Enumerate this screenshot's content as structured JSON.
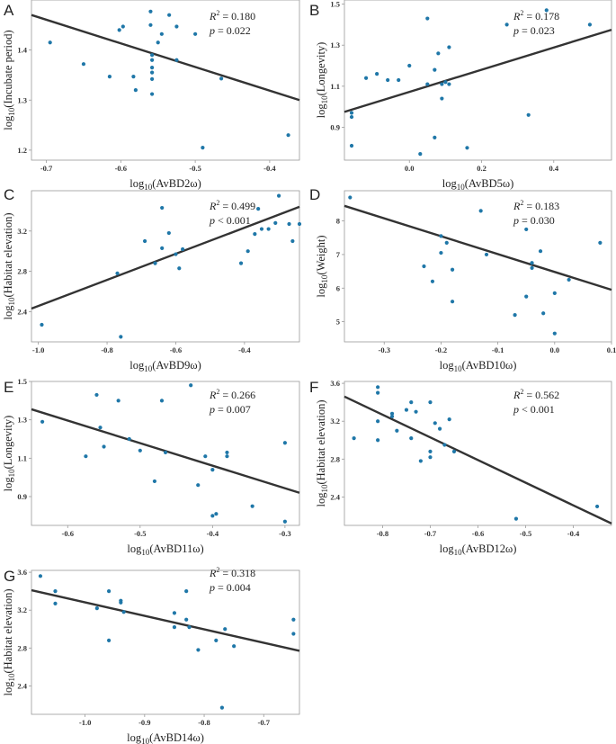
{
  "chart_data": [
    {
      "id": "A",
      "type": "scatter",
      "letter": "A",
      "xlabel_prefix": "log",
      "xlabel_sub": "10",
      "xlabel_rest": "(AvBD2ω)",
      "ylabel_prefix": "log",
      "ylabel_sub": "10",
      "ylabel_rest": "(Incubate  period)",
      "xlim": [
        -0.72,
        -0.36
      ],
      "ylim": [
        1.18,
        1.5
      ],
      "xticks": [
        -0.7,
        -0.6,
        -0.5,
        -0.4
      ],
      "xtick_labels": [
        "-0.7",
        "-0.6",
        "-0.5",
        "-0.4"
      ],
      "yticks": [
        1.2,
        1.3,
        1.4
      ],
      "ytick_labels": [
        "1.2",
        "1.3",
        "1.4"
      ],
      "r2": "0.180",
      "p": "0.022",
      "stat_r2_label": "R",
      "stat_r2_sup": "2",
      "stat_r2_eq": " = ",
      "stat_p_label": "p",
      "stat_p_eq": " = ",
      "fit": [
        [
          -0.72,
          1.47
        ],
        [
          -0.36,
          1.3
        ]
      ],
      "points": [
        [
          -0.695,
          1.415
        ],
        [
          -0.65,
          1.372
        ],
        [
          -0.615,
          1.347
        ],
        [
          -0.602,
          1.44
        ],
        [
          -0.597,
          1.447
        ],
        [
          -0.583,
          1.347
        ],
        [
          -0.58,
          1.32
        ],
        [
          -0.56,
          1.477
        ],
        [
          -0.56,
          1.45
        ],
        [
          -0.558,
          1.39
        ],
        [
          -0.558,
          1.38
        ],
        [
          -0.558,
          1.365
        ],
        [
          -0.558,
          1.355
        ],
        [
          -0.558,
          1.342
        ],
        [
          -0.558,
          1.312
        ],
        [
          -0.55,
          1.415
        ],
        [
          -0.545,
          1.432
        ],
        [
          -0.535,
          1.47
        ],
        [
          -0.525,
          1.447
        ],
        [
          -0.525,
          1.38
        ],
        [
          -0.5,
          1.432
        ],
        [
          -0.49,
          1.205
        ],
        [
          -0.465,
          1.343
        ],
        [
          -0.375,
          1.23
        ]
      ]
    },
    {
      "id": "B",
      "type": "scatter",
      "letter": "B",
      "xlabel_prefix": "log",
      "xlabel_sub": "10",
      "xlabel_rest": "(AvBD5ω)",
      "ylabel_prefix": "log",
      "ylabel_sub": "10",
      "ylabel_rest": "(Longevity)",
      "xlim": [
        -0.18,
        0.56
      ],
      "ylim": [
        0.74,
        1.52
      ],
      "xticks": [
        0.0,
        0.2,
        0.4
      ],
      "xtick_labels": [
        "0.0",
        "0.2",
        "0.4"
      ],
      "yticks": [
        0.9,
        1.1,
        1.3,
        1.5
      ],
      "ytick_labels": [
        "0.9",
        "1.1",
        "1.3",
        "1.5"
      ],
      "r2": "0.178",
      "p": "0.023",
      "stat_r2_label": "R",
      "stat_r2_sup": "2",
      "stat_r2_eq": " = ",
      "stat_p_label": "p",
      "stat_p_eq": " = ",
      "fit": [
        [
          -0.18,
          0.975
        ],
        [
          0.56,
          1.375
        ]
      ],
      "points": [
        [
          -0.16,
          0.97
        ],
        [
          -0.16,
          0.95
        ],
        [
          -0.16,
          0.81
        ],
        [
          -0.12,
          1.14
        ],
        [
          -0.09,
          1.16
        ],
        [
          -0.06,
          1.13
        ],
        [
          -0.03,
          1.13
        ],
        [
          0.0,
          1.2
        ],
        [
          0.03,
          0.77
        ],
        [
          0.05,
          1.43
        ],
        [
          0.05,
          1.11
        ],
        [
          0.07,
          0.85
        ],
        [
          0.07,
          1.18
        ],
        [
          0.08,
          1.26
        ],
        [
          0.09,
          1.11
        ],
        [
          0.09,
          1.04
        ],
        [
          0.1,
          1.12
        ],
        [
          0.11,
          1.11
        ],
        [
          0.11,
          1.29
        ],
        [
          0.16,
          0.8
        ],
        [
          0.27,
          1.4
        ],
        [
          0.33,
          0.96
        ],
        [
          0.38,
          1.47
        ],
        [
          0.5,
          1.4
        ]
      ]
    },
    {
      "id": "C",
      "type": "scatter",
      "letter": "C",
      "xlabel_prefix": "log",
      "xlabel_sub": "10",
      "xlabel_rest": "(AvBD9ω)",
      "ylabel_prefix": "log",
      "ylabel_sub": "10",
      "ylabel_rest": "(Habitat  elevation)",
      "xlim": [
        -1.02,
        -0.24
      ],
      "ylim": [
        2.1,
        3.6
      ],
      "xticks": [
        -1.0,
        -0.8,
        -0.6,
        -0.4
      ],
      "xtick_labels": [
        "-1.0",
        "-0.8",
        "-0.6",
        "-0.4"
      ],
      "yticks": [
        2.4,
        2.8,
        3.2
      ],
      "ytick_labels": [
        "2.4",
        "2.8",
        "3.2"
      ],
      "r2": "0.499",
      "p": "0.001",
      "stat_r2_label": "R",
      "stat_r2_sup": "2",
      "stat_r2_eq": " = ",
      "stat_p_label": "p",
      "stat_p_eq": " < ",
      "fit": [
        [
          -1.02,
          2.43
        ],
        [
          -0.24,
          3.44
        ]
      ],
      "points": [
        [
          -0.99,
          2.27
        ],
        [
          -0.77,
          2.78
        ],
        [
          -0.76,
          2.15
        ],
        [
          -0.69,
          3.1
        ],
        [
          -0.66,
          2.88
        ],
        [
          -0.64,
          3.43
        ],
        [
          -0.64,
          3.03
        ],
        [
          -0.62,
          3.18
        ],
        [
          -0.6,
          2.97
        ],
        [
          -0.59,
          2.83
        ],
        [
          -0.58,
          3.02
        ],
        [
          -0.41,
          2.88
        ],
        [
          -0.39,
          3.0
        ],
        [
          -0.37,
          3.17
        ],
        [
          -0.36,
          3.42
        ],
        [
          -0.35,
          3.22
        ],
        [
          -0.33,
          3.22
        ],
        [
          -0.31,
          3.28
        ],
        [
          -0.3,
          3.55
        ],
        [
          -0.27,
          3.27
        ],
        [
          -0.26,
          3.1
        ],
        [
          -0.24,
          3.27
        ]
      ]
    },
    {
      "id": "D",
      "type": "scatter",
      "letter": "D",
      "xlabel_prefix": "log",
      "xlabel_sub": "10",
      "xlabel_rest": "(AvBD10ω)",
      "ylabel_prefix": "log",
      "ylabel_sub": "10",
      "ylabel_rest": "(Weight)",
      "xlim": [
        -0.37,
        0.1
      ],
      "ylim": [
        4.4,
        8.9
      ],
      "xticks": [
        -0.3,
        -0.2,
        -0.1,
        0.0,
        0.1
      ],
      "xtick_labels": [
        "-0.3",
        "-0.2",
        "-0.1",
        "0.0",
        "0.1"
      ],
      "yticks": [
        5,
        6,
        7,
        8
      ],
      "ytick_labels": [
        "5",
        "6",
        "7",
        "8"
      ],
      "r2": "0.183",
      "p": "0.030",
      "stat_r2_label": "R",
      "stat_r2_sup": "2",
      "stat_r2_eq": " = ",
      "stat_p_label": "p",
      "stat_p_eq": " = ",
      "fit": [
        [
          -0.37,
          8.45
        ],
        [
          0.1,
          5.95
        ]
      ],
      "points": [
        [
          -0.36,
          8.7
        ],
        [
          -0.23,
          6.65
        ],
        [
          -0.215,
          6.2
        ],
        [
          -0.2,
          7.55
        ],
        [
          -0.2,
          7.05
        ],
        [
          -0.19,
          7.35
        ],
        [
          -0.18,
          6.55
        ],
        [
          -0.18,
          5.6
        ],
        [
          -0.12,
          7.0
        ],
        [
          -0.13,
          8.3
        ],
        [
          -0.07,
          5.2
        ],
        [
          -0.05,
          5.75
        ],
        [
          -0.05,
          7.75
        ],
        [
          -0.04,
          6.75
        ],
        [
          -0.04,
          6.6
        ],
        [
          -0.025,
          7.1
        ],
        [
          -0.02,
          5.25
        ],
        [
          0.0,
          4.65
        ],
        [
          0.0,
          5.85
        ],
        [
          0.025,
          6.25
        ],
        [
          0.08,
          7.35
        ]
      ]
    },
    {
      "id": "E",
      "type": "scatter",
      "letter": "E",
      "xlabel_prefix": "log",
      "xlabel_sub": "10",
      "xlabel_rest": "(AvBD11ω)",
      "ylabel_prefix": "log",
      "ylabel_sub": "10",
      "ylabel_rest": "(Longevity)",
      "xlim": [
        -0.65,
        -0.28
      ],
      "ylim": [
        0.75,
        1.5
      ],
      "xticks": [
        -0.6,
        -0.5,
        -0.4,
        -0.3
      ],
      "xtick_labels": [
        "-0.6",
        "-0.5",
        "-0.4",
        "-0.3"
      ],
      "yticks": [
        0.9,
        1.1,
        1.3,
        1.5
      ],
      "ytick_labels": [
        "0.9",
        "1.1",
        "1.3",
        "1.5"
      ],
      "r2": "0.266",
      "p": "0.007",
      "stat_r2_label": "R",
      "stat_r2_sup": "2",
      "stat_r2_eq": " = ",
      "stat_p_label": "p",
      "stat_p_eq": " = ",
      "fit": [
        [
          -0.65,
          1.355
        ],
        [
          -0.28,
          0.92
        ]
      ],
      "points": [
        [
          -0.635,
          1.29
        ],
        [
          -0.575,
          1.11
        ],
        [
          -0.56,
          1.43
        ],
        [
          -0.555,
          1.26
        ],
        [
          -0.55,
          1.16
        ],
        [
          -0.53,
          1.4
        ],
        [
          -0.515,
          1.2
        ],
        [
          -0.5,
          1.14
        ],
        [
          -0.48,
          0.98
        ],
        [
          -0.47,
          1.4
        ],
        [
          -0.465,
          1.13
        ],
        [
          -0.43,
          1.48
        ],
        [
          -0.42,
          0.96
        ],
        [
          -0.41,
          1.11
        ],
        [
          -0.4,
          1.04
        ],
        [
          -0.4,
          0.8
        ],
        [
          -0.395,
          0.81
        ],
        [
          -0.38,
          1.13
        ],
        [
          -0.38,
          1.11
        ],
        [
          -0.345,
          0.85
        ],
        [
          -0.3,
          1.18
        ],
        [
          -0.3,
          0.77
        ]
      ]
    },
    {
      "id": "F",
      "type": "scatter",
      "letter": "F",
      "xlabel_prefix": "log",
      "xlabel_sub": "10",
      "xlabel_rest": "(AvBD12ω)",
      "ylabel_prefix": "log",
      "ylabel_sub": "10",
      "ylabel_rest": "(Habitat  elevation)",
      "xlim": [
        -0.88,
        -0.32
      ],
      "ylim": [
        2.1,
        3.62
      ],
      "xticks": [
        -0.8,
        -0.7,
        -0.6,
        -0.5,
        -0.4
      ],
      "xtick_labels": [
        "-0.8",
        "-0.7",
        "-0.6",
        "-0.5",
        "-0.4"
      ],
      "yticks": [
        2.4,
        2.8,
        3.2,
        3.6
      ],
      "ytick_labels": [
        "2.4",
        "2.8",
        "3.2",
        "3.6"
      ],
      "r2": "0.562",
      "p": "0.001",
      "stat_r2_label": "R",
      "stat_r2_sup": "2",
      "stat_r2_eq": " = ",
      "stat_p_label": "p",
      "stat_p_eq": " < ",
      "fit": [
        [
          -0.88,
          3.46
        ],
        [
          -0.32,
          2.12
        ]
      ],
      "points": [
        [
          -0.86,
          3.02
        ],
        [
          -0.81,
          3.56
        ],
        [
          -0.81,
          3.5
        ],
        [
          -0.81,
          3.2
        ],
        [
          -0.81,
          3.0
        ],
        [
          -0.78,
          3.28
        ],
        [
          -0.78,
          3.25
        ],
        [
          -0.77,
          3.1
        ],
        [
          -0.75,
          3.32
        ],
        [
          -0.74,
          3.02
        ],
        [
          -0.74,
          3.4
        ],
        [
          -0.73,
          3.3
        ],
        [
          -0.72,
          2.78
        ],
        [
          -0.7,
          3.4
        ],
        [
          -0.7,
          2.82
        ],
        [
          -0.7,
          2.88
        ],
        [
          -0.69,
          3.18
        ],
        [
          -0.68,
          3.12
        ],
        [
          -0.67,
          2.95
        ],
        [
          -0.66,
          3.22
        ],
        [
          -0.65,
          2.88
        ],
        [
          -0.52,
          2.17
        ],
        [
          -0.35,
          2.3
        ]
      ]
    },
    {
      "id": "G",
      "type": "scatter",
      "letter": "G",
      "xlabel_prefix": "log",
      "xlabel_sub": "10",
      "xlabel_rest": "(AvBD14ω)",
      "ylabel_prefix": "log",
      "ylabel_sub": "10",
      "ylabel_rest": "(Habitat  elevation)",
      "xlim": [
        -1.09,
        -0.64
      ],
      "ylim": [
        2.1,
        3.62
      ],
      "xticks": [
        -1.0,
        -0.9,
        -0.8,
        -0.7
      ],
      "xtick_labels": [
        "-1.0",
        "-0.9",
        "-0.8",
        "-0.7"
      ],
      "yticks": [
        2.4,
        2.8,
        3.2,
        3.6
      ],
      "ytick_labels": [
        "2.4",
        "2.8",
        "3.2",
        "3.6"
      ],
      "r2": "0.318",
      "p": "0.004",
      "stat_r2_label": "R",
      "stat_r2_sup": "2",
      "stat_r2_eq": " = ",
      "stat_p_label": "p",
      "stat_p_eq": " = ",
      "fit": [
        [
          -1.09,
          3.41
        ],
        [
          -0.64,
          2.77
        ]
      ],
      "points": [
        [
          -1.075,
          3.56
        ],
        [
          -1.05,
          3.4
        ],
        [
          -1.05,
          3.27
        ],
        [
          -0.98,
          3.22
        ],
        [
          -0.96,
          3.4
        ],
        [
          -0.96,
          2.88
        ],
        [
          -0.94,
          3.3
        ],
        [
          -0.94,
          3.28
        ],
        [
          -0.935,
          3.18
        ],
        [
          -0.85,
          3.17
        ],
        [
          -0.85,
          3.02
        ],
        [
          -0.83,
          3.4
        ],
        [
          -0.83,
          3.1
        ],
        [
          -0.825,
          3.02
        ],
        [
          -0.81,
          2.78
        ],
        [
          -0.78,
          2.88
        ],
        [
          -0.77,
          2.17
        ],
        [
          -0.765,
          3.0
        ],
        [
          -0.75,
          2.82
        ],
        [
          -0.65,
          3.1
        ],
        [
          -0.65,
          2.95
        ]
      ]
    }
  ]
}
